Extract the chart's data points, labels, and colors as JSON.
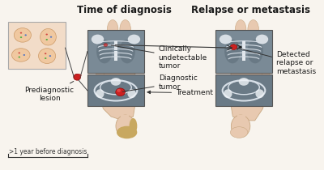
{
  "title_left": "Time of diagnosis",
  "title_right": "Relapse or metastasis",
  "label_prediag": "Prediagnostic\nlesion",
  "label_undetectable": "Clinically\nundetectable\ntumor",
  "label_diagnostic": "Diagnostic\ntumor",
  "label_treatment": "Treatment",
  "label_detected": "Detected\nrelapse or\nmetastasis",
  "label_year": ">1 year before diagnosis",
  "bg_color": "#f8f4ee",
  "skin_color": "#e8c9b0",
  "skin_edge": "#c9a882",
  "xray_bg": "#7a8a96",
  "xray_bone": "#d8e0e8",
  "xray_bone2": "#f0f4f8",
  "tumor_color": "#cc2020",
  "cell_bg": "#f5ddc8",
  "cell_outline": "#d4a882",
  "title_fontsize": 8.5,
  "label_fontsize": 6.5,
  "arrow_color": "#333333"
}
